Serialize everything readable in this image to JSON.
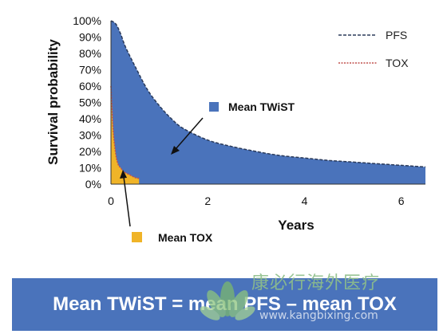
{
  "chart_data": {
    "type": "area",
    "xlabel": "Years",
    "ylabel": "Survival probability",
    "xlim": [
      0,
      6.5
    ],
    "ylim": [
      0,
      100
    ],
    "x_ticks": [
      0,
      2,
      4,
      6
    ],
    "y_ticks": [
      0,
      10,
      20,
      30,
      40,
      50,
      60,
      70,
      80,
      90,
      100
    ],
    "y_tick_labels": [
      "0%",
      "10%",
      "20%",
      "30%",
      "40%",
      "50%",
      "60%",
      "70%",
      "80%",
      "90%",
      "100%"
    ],
    "grid": false,
    "legend_position": "top-right",
    "series": [
      {
        "name": "PFS",
        "style": "dashed",
        "line_color": "#2a3a5a",
        "fill_color": "#4a73bb",
        "x": [
          0,
          0.1,
          0.2,
          0.3,
          0.5,
          0.75,
          1.0,
          1.25,
          1.5,
          2.0,
          2.5,
          3.0,
          3.5,
          4.0,
          4.5,
          5.0,
          5.5,
          6.0,
          6.5
        ],
        "y": [
          100,
          98,
          92,
          84,
          72,
          58,
          48,
          40,
          34,
          27,
          23,
          20,
          17.5,
          16,
          14.5,
          13.5,
          12.5,
          11.5,
          10.5
        ]
      },
      {
        "name": "TOX",
        "style": "dashed",
        "line_color": "#c0504d",
        "fill_color": "#f0b428",
        "x": [
          0,
          0.02,
          0.05,
          0.1,
          0.15,
          0.2,
          0.25,
          0.3,
          0.4,
          0.5,
          0.58
        ],
        "y": [
          60,
          48,
          32,
          18,
          12,
          10,
          8,
          7,
          5.5,
          4,
          3.5
        ]
      }
    ],
    "annotations": [
      {
        "label": "Mean TWiST",
        "color": "#4a73bb"
      },
      {
        "label": "Mean TOX",
        "color": "#f0b428"
      }
    ]
  },
  "formula": "Mean TWiST = mean PFS – mean TOX",
  "watermark": {
    "chinese": "康必行海外医疗",
    "url": "www.kangbixing.com",
    "logo_icon": "lotus-logo-icon"
  }
}
